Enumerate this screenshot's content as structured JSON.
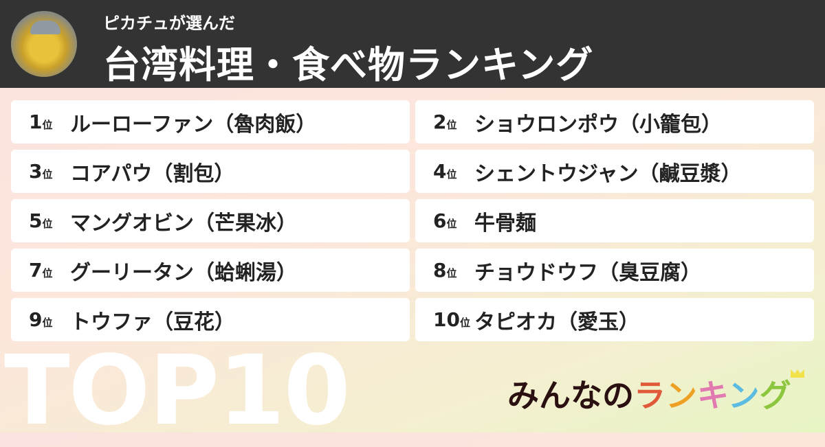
{
  "header": {
    "subtitle": "ピカチュが選んだ",
    "title": "台湾料理・食べ物ランキング"
  },
  "rank_suffix": "位",
  "items": [
    {
      "rank": "1",
      "name": "ルーローファン（魯肉飯）"
    },
    {
      "rank": "2",
      "name": "ショウロンポウ（小籠包）"
    },
    {
      "rank": "3",
      "name": "コアパウ（割包）"
    },
    {
      "rank": "4",
      "name": "シェントウジャン（鹹豆漿）"
    },
    {
      "rank": "5",
      "name": "マングオビン（芒果冰）"
    },
    {
      "rank": "6",
      "name": "牛骨麺"
    },
    {
      "rank": "7",
      "name": "グーリータン（蛤蜊湯）"
    },
    {
      "rank": "8",
      "name": "チョウドウフ（臭豆腐）"
    },
    {
      "rank": "9",
      "name": "トウファ（豆花）"
    },
    {
      "rank": "10",
      "name": "タピオカ（愛玉）"
    }
  ],
  "footer": {
    "top_label": "TOP10",
    "logo": {
      "part1": "みんなの",
      "chars": [
        "ラ",
        "ン",
        "キ",
        "ン",
        "グ"
      ],
      "colors": [
        "#e05a3a",
        "#eea024",
        "#e07ab0",
        "#5bbbe0",
        "#8cc63f"
      ]
    }
  }
}
